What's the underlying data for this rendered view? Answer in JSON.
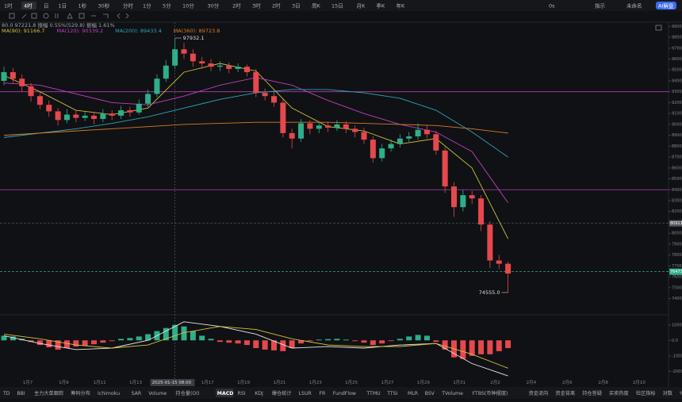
{
  "toolbar": {
    "timeframes": [
      "1时",
      "4时",
      "日",
      "1日",
      "1秒",
      "30秒",
      "分时",
      "1分",
      "5分",
      "10分",
      "30分",
      "2时",
      "3时",
      "2时",
      "3日",
      "周K",
      "15日",
      "月K",
      "季K",
      "年K"
    ],
    "right": [
      "0s",
      "指示",
      "未命名",
      "AI解盘"
    ]
  },
  "info_row": "80.0  97221.8  振幅 0.55%(529.8)  振幅 1.61%",
  "ma_legend": [
    "MA(90): 91166.7",
    "MA(120): 90339.2",
    "MA(200): 89433.4",
    "MA(360): 89723.8"
  ],
  "indicator_tabs": [
    "TD",
    "BBI",
    "主力大单跟踪",
    "筹码分布",
    "Ichimoku",
    "SAR",
    "Volume",
    "持仓量(OI)",
    "MACD",
    "RSI",
    "KDJ",
    "爆仓统计",
    "LSUR",
    "FR",
    "FundFlow",
    "TTMU",
    "TTSI",
    "MLR",
    "BSV",
    "TVolume",
    "FTBS(币种摆度)",
    "资金流向",
    "资金背离",
    "持仓答疑",
    "买卖热度",
    "社区指标",
    "对数",
    "%"
  ],
  "chart_data": {
    "type": "candlestick",
    "ylim": [
      73000,
      100000
    ],
    "yticks": [
      99000,
      98000,
      97000,
      96000,
      95000,
      94000,
      93000,
      92000,
      91000,
      90000,
      89000,
      88000,
      87000,
      86000,
      85000,
      84000,
      83000,
      82000,
      81000,
      80000,
      79000,
      78000,
      77000,
      76000,
      75000,
      74000
    ],
    "date_labels": [
      "1月7",
      "1月9",
      "1月11",
      "1月13",
      "2025-01-15 08:00",
      "1月17",
      "1月19",
      "1月21",
      "1月23",
      "1月25",
      "1月27",
      "1月29",
      "1月31",
      "2月2",
      "2月4",
      "2月6",
      "2月8",
      "2月10"
    ],
    "up_color": "#2eae8a",
    "down_color": "#e5484d",
    "open": [
      94000,
      94800,
      94200,
      93500,
      92600,
      91800,
      91200,
      90400,
      90900,
      90600,
      90800,
      90500,
      91000,
      90800,
      91300,
      91100,
      91900,
      92800,
      94200,
      95400,
      96900,
      96500,
      95800,
      95600,
      95300,
      95400,
      95100,
      95300,
      94800,
      92900,
      92600,
      92000,
      89200,
      88700,
      90100,
      89600,
      89900,
      89700,
      90000,
      89600,
      89300,
      88600,
      86900,
      87800,
      88200,
      88700,
      88900,
      89500,
      89100,
      87600,
      84300,
      82400,
      83500,
      83200,
      80800,
      77500,
      77200
    ],
    "high": [
      95300,
      95200,
      94600,
      93800,
      93000,
      92200,
      91500,
      91400,
      91300,
      91200,
      91100,
      91400,
      91300,
      91700,
      91600,
      92300,
      93200,
      94600,
      95900,
      97932.1,
      97500,
      96900,
      96200,
      96000,
      95800,
      95700,
      95600,
      95500,
      95100,
      93300,
      93000,
      92300,
      89600,
      90500,
      90400,
      90300,
      90200,
      90400,
      90300,
      89900,
      89700,
      88900,
      88200,
      88600,
      89100,
      89300,
      90100,
      89900,
      89400,
      87900,
      84700,
      84000,
      83900,
      83500,
      81100,
      78000,
      77400
    ],
    "low": [
      93600,
      93800,
      93000,
      92100,
      91400,
      90700,
      89900,
      90100,
      90200,
      90300,
      90000,
      90200,
      90400,
      90500,
      90700,
      90900,
      91600,
      92500,
      93900,
      95100,
      96000,
      95300,
      95100,
      94900,
      94900,
      94700,
      94800,
      94400,
      92500,
      92200,
      91600,
      88800,
      87800,
      88400,
      89100,
      89200,
      89300,
      89400,
      89200,
      88800,
      88200,
      86500,
      86600,
      87500,
      87900,
      88400,
      88600,
      88700,
      87200,
      83700,
      81500,
      82000,
      82700,
      80200,
      76800,
      76700,
      74555
    ],
    "close": [
      94800,
      94200,
      93500,
      92600,
      91800,
      91200,
      90400,
      90900,
      90600,
      90800,
      90500,
      91000,
      90800,
      91300,
      91100,
      91900,
      92800,
      94200,
      95400,
      96900,
      96500,
      95800,
      95600,
      95300,
      95400,
      95100,
      95300,
      94800,
      92900,
      92600,
      92000,
      89200,
      88700,
      90100,
      89600,
      89900,
      89700,
      90000,
      89600,
      89300,
      88600,
      86900,
      87800,
      88200,
      88700,
      88900,
      89500,
      89100,
      87600,
      84300,
      82400,
      83500,
      83200,
      80800,
      77500,
      77200,
      76300
    ],
    "high_annotation": "97932.1",
    "low_annotation": "74555.0",
    "ma": [
      {
        "name": "MA(90)",
        "color": "#c9c33a",
        "values": [
          94500,
          93000,
          91300,
          90900,
          91500,
          94800,
          95600,
          94900,
          91500,
          89800,
          89400,
          88200,
          88700,
          86000,
          79500
        ]
      },
      {
        "name": "MA(120)",
        "color": "#c040c0",
        "values": [
          93800,
          93600,
          92800,
          92000,
          91800,
          92600,
          93600,
          94300,
          93600,
          92200,
          91000,
          90000,
          89300,
          87500,
          82800
        ]
      },
      {
        "name": "MA(200)",
        "color": "#2aa7b8",
        "values": [
          88800,
          89200,
          89600,
          90100,
          90700,
          91500,
          92300,
          92900,
          93200,
          93200,
          92900,
          92400,
          91300,
          89300,
          87000
        ]
      },
      {
        "name": "MA(360)",
        "color": "#d87a2a",
        "values": [
          89000,
          89200,
          89400,
          89600,
          89800,
          90000,
          90100,
          90200,
          90200,
          90200,
          90100,
          90000,
          89900,
          89600,
          89200
        ]
      }
    ],
    "levels": [
      {
        "value": 93000,
        "color": "#b43cb4"
      },
      {
        "value": 84000,
        "color": "#b43cb4"
      }
    ],
    "price_markers": [
      {
        "value": 80911,
        "label": "80911",
        "color": "#555a63"
      },
      {
        "value": 76473,
        "label": "76473",
        "color": "#2eae8a"
      }
    ],
    "macd": {
      "ylim": [
        -2500,
        1500
      ],
      "yticks": [
        {
          "value": 1000,
          "label": "1000.0"
        },
        {
          "value": 0,
          "label": "0.0"
        },
        {
          "value": -1000,
          "label": "-1000.0"
        },
        {
          "value": -2000,
          "label": "-2000.0"
        }
      ],
      "histogram": [
        300,
        250,
        100,
        -100,
        -300,
        -450,
        -600,
        -500,
        -400,
        -350,
        -250,
        -150,
        -50,
        100,
        150,
        250,
        400,
        600,
        800,
        1000,
        900,
        600,
        300,
        100,
        -100,
        -150,
        -200,
        -300,
        -500,
        -600,
        -650,
        -700,
        -500,
        -200,
        -50,
        50,
        80,
        100,
        50,
        -50,
        -150,
        -300,
        -200,
        -50,
        100,
        250,
        350,
        300,
        -100,
        -600,
        -1100,
        -1200,
        -1000,
        -900,
        -900,
        -700,
        -500
      ],
      "dif": {
        "color": "#e8e8e8",
        "values": [
          300,
          -200,
          -600,
          -500,
          0,
          1200,
          900,
          400,
          -500,
          -400,
          -500,
          -300,
          -200,
          -1500,
          -2300
        ]
      },
      "dea": {
        "color": "#d9c23a",
        "values": [
          400,
          100,
          -300,
          -500,
          -300,
          500,
          900,
          700,
          100,
          -300,
          -400,
          -400,
          -200,
          -900,
          -1800
        ]
      }
    }
  }
}
